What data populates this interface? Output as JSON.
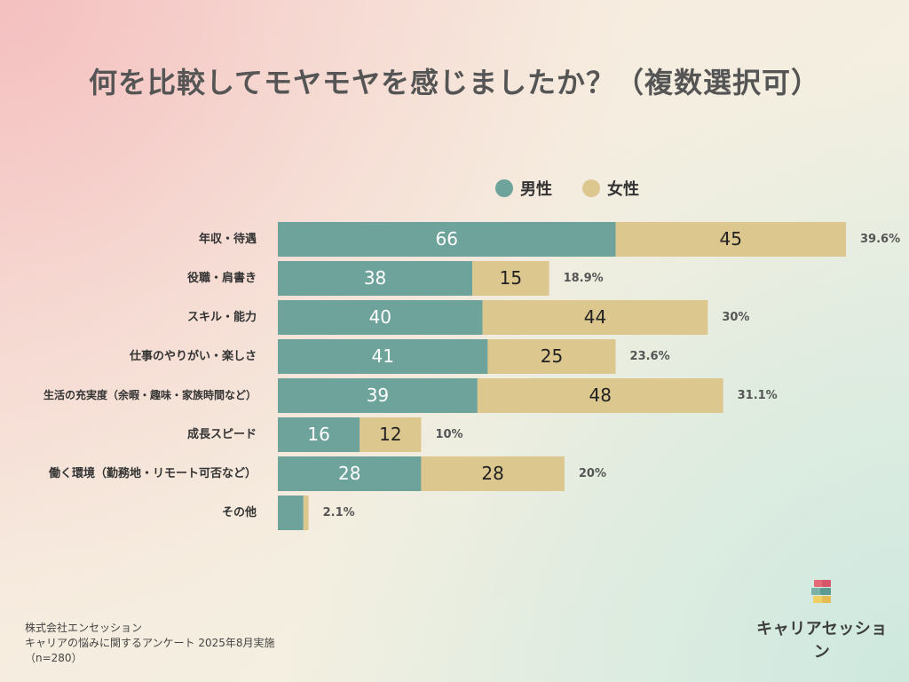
{
  "header": {
    "title": "何を比較してモヤモヤを感じましたか？（複数選択可）"
  },
  "legend": {
    "male_label": "男性",
    "female_label": "女性",
    "male_color": "#6ea39c",
    "female_color": "#dcc78e"
  },
  "chart_data": {
    "type": "bar",
    "stacked": true,
    "orientation": "horizontal",
    "categories": [
      "年収・待遇",
      "役職・肩書き",
      "スキル・能力",
      "仕事のやりがい・楽しさ",
      "生活の充実度（余暇・趣味・家族時間など）",
      "成長スピード",
      "働く環境（勤務地・リモート可否など）",
      "その他"
    ],
    "series": [
      {
        "name": "男性",
        "values": [
          66,
          38,
          40,
          41,
          39,
          16,
          28,
          5
        ]
      },
      {
        "name": "女性",
        "values": [
          45,
          15,
          44,
          25,
          48,
          12,
          28,
          1
        ]
      }
    ],
    "value_labels": [
      [
        "66",
        "45"
      ],
      [
        "38",
        "15"
      ],
      [
        "40",
        "44"
      ],
      [
        "41",
        "25"
      ],
      [
        "39",
        "48"
      ],
      [
        "16",
        "12"
      ],
      [
        "28",
        "28"
      ],
      [
        "",
        ""
      ]
    ],
    "percent_labels": [
      "39.6%",
      "18.9%",
      "30%",
      "23.6%",
      "31.1%",
      "10%",
      "20%",
      "2.1%"
    ],
    "xlim": [
      0,
      111
    ],
    "grid": false,
    "legend_position": "top-right"
  },
  "footer": {
    "company": "株式会社エンセッション",
    "survey": "キャリアの悩みに関するアンケート 2025年8月実施",
    "sample": "（n=280）"
  },
  "brand": {
    "name": "キャリアセッション"
  }
}
